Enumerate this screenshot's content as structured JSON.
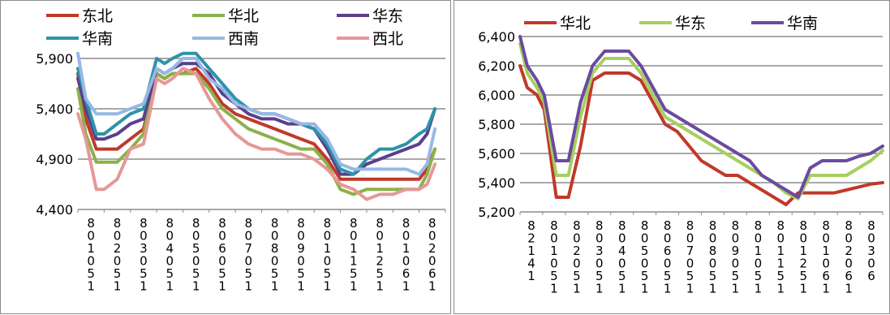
{
  "chart_data": [
    {
      "type": "line",
      "ylim": [
        4400,
        5900
      ],
      "yticks": [
        4400,
        4900,
        5400,
        5900
      ],
      "ytick_labels": [
        "4,400",
        "4,900",
        "5,400",
        "5,900"
      ],
      "xtick_labels": [
        "80105 1",
        "80205 1",
        "80305 1",
        "80405 1",
        "80505 1",
        "80605 1",
        "80705 1",
        "80805 1",
        "80905 1",
        "80105 1",
        "80115 1",
        "80125 1",
        "80106 1",
        "80206 1"
      ],
      "grid": true,
      "legend": "top",
      "series": [
        {
          "name": "东北",
          "color": "#c0392b",
          "x": [
            0,
            0.3,
            0.7,
            1,
            1.5,
            2,
            2.5,
            3,
            3.3,
            3.6,
            4,
            4.5,
            5,
            5.5,
            6,
            6.5,
            7,
            7.5,
            8,
            8.5,
            9,
            9.5,
            10,
            10.5,
            11,
            11.5,
            12,
            12.5,
            13,
            13.3,
            13.6
          ],
          "values": [
            5750,
            5300,
            5000,
            5000,
            5000,
            5100,
            5200,
            5750,
            5700,
            5750,
            5750,
            5800,
            5650,
            5450,
            5350,
            5300,
            5250,
            5200,
            5150,
            5100,
            5050,
            4900,
            4700,
            4700,
            4700,
            4700,
            4700,
            4700,
            4700,
            4800,
            5000
          ]
        },
        {
          "name": "华北",
          "color": "#8db04b",
          "x": [
            0,
            0.3,
            0.7,
            1,
            1.5,
            2,
            2.5,
            3,
            3.3,
            3.6,
            4,
            4.5,
            5,
            5.5,
            6,
            6.5,
            7,
            7.5,
            8,
            8.5,
            9,
            9.5,
            10,
            10.5,
            11,
            11.5,
            12,
            12.5,
            13,
            13.3,
            13.6
          ],
          "values": [
            5600,
            5150,
            4870,
            4870,
            4870,
            5000,
            5150,
            5750,
            5700,
            5750,
            5750,
            5750,
            5600,
            5400,
            5300,
            5200,
            5150,
            5100,
            5050,
            5000,
            5000,
            4850,
            4600,
            4550,
            4600,
            4600,
            4600,
            4600,
            4600,
            4750,
            5000
          ]
        },
        {
          "name": "华东",
          "color": "#5b3f8c",
          "x": [
            0,
            0.3,
            0.7,
            1,
            1.5,
            2,
            2.5,
            3,
            3.3,
            3.6,
            4,
            4.5,
            5,
            5.5,
            6,
            6.5,
            7,
            7.5,
            8,
            8.5,
            9,
            9.5,
            10,
            10.5,
            11,
            11.5,
            12,
            12.5,
            13,
            13.3,
            13.6
          ],
          "values": [
            5700,
            5400,
            5100,
            5100,
            5150,
            5250,
            5300,
            5800,
            5750,
            5800,
            5850,
            5850,
            5750,
            5550,
            5450,
            5350,
            5300,
            5300,
            5250,
            5250,
            5200,
            5000,
            4750,
            4750,
            4850,
            4900,
            4950,
            5000,
            5050,
            5150,
            5400
          ]
        },
        {
          "name": "华南",
          "color": "#2e93a8",
          "x": [
            0,
            0.3,
            0.7,
            1,
            1.5,
            2,
            2.5,
            3,
            3.3,
            3.6,
            4,
            4.5,
            5,
            5.5,
            6,
            6.5,
            7,
            7.5,
            8,
            8.5,
            9,
            9.5,
            10,
            10.5,
            11,
            11.5,
            12,
            12.5,
            13,
            13.3,
            13.6
          ],
          "values": [
            5800,
            5500,
            5150,
            5150,
            5250,
            5350,
            5400,
            5900,
            5850,
            5900,
            5950,
            5950,
            5800,
            5650,
            5500,
            5400,
            5350,
            5350,
            5300,
            5250,
            5200,
            5050,
            4800,
            4750,
            4900,
            5000,
            5000,
            5050,
            5150,
            5200,
            5400
          ]
        },
        {
          "name": "西南",
          "color": "#97b8e6",
          "x": [
            0,
            0.3,
            0.7,
            1,
            1.5,
            2,
            2.5,
            3,
            3.3,
            3.6,
            4,
            4.5,
            5,
            5.5,
            6,
            6.5,
            7,
            7.5,
            8,
            8.5,
            9,
            9.5,
            10,
            10.5,
            11,
            11.5,
            12,
            12.5,
            13,
            13.3,
            13.6
          ],
          "values": [
            5950,
            5500,
            5350,
            5350,
            5350,
            5400,
            5450,
            5800,
            5750,
            5800,
            5900,
            5900,
            5700,
            5600,
            5450,
            5400,
            5350,
            5350,
            5300,
            5250,
            5250,
            5100,
            4850,
            4800,
            4800,
            4800,
            4800,
            4800,
            4750,
            4850,
            5200
          ]
        },
        {
          "name": "西北",
          "color": "#e59896",
          "x": [
            0,
            0.3,
            0.7,
            1,
            1.5,
            2,
            2.5,
            3,
            3.3,
            3.6,
            4,
            4.5,
            5,
            5.5,
            6,
            6.5,
            7,
            7.5,
            8,
            8.5,
            9,
            9.5,
            10,
            10.5,
            11,
            11.5,
            12,
            12.5,
            13,
            13.3,
            13.6
          ],
          "values": [
            5350,
            5100,
            4600,
            4600,
            4700,
            5000,
            5050,
            5700,
            5650,
            5700,
            5800,
            5750,
            5500,
            5300,
            5150,
            5050,
            5000,
            5000,
            4950,
            4950,
            4900,
            4800,
            4650,
            4600,
            4500,
            4550,
            4550,
            4600,
            4600,
            4650,
            4850
          ]
        }
      ]
    },
    {
      "type": "line",
      "ylim": [
        5200,
        6400
      ],
      "yticks": [
        5200,
        5400,
        5600,
        5800,
        6000,
        6200,
        6400
      ],
      "ytick_labels": [
        "5,200",
        "5,400",
        "5,600",
        "5,800",
        "6,000",
        "6,200",
        "6,400"
      ],
      "xtick_labels": [
        "8214 1",
        "80105 1",
        "80205 1",
        "80305 1",
        "80405 1",
        "80505 1",
        "80605 1",
        "80705 1",
        "80805 1",
        "80905 1",
        "80105 1",
        "80115 1",
        "80125 1",
        "80106 1",
        "80206 1",
        "80306"
      ],
      "grid": true,
      "legend": "top",
      "series": [
        {
          "name": "华北",
          "color": "#c0392b",
          "x": [
            0,
            0.3,
            0.7,
            1,
            1.5,
            2,
            2.5,
            3,
            3.5,
            4,
            4.5,
            5,
            5.5,
            6,
            6.5,
            7,
            7.5,
            8,
            8.5,
            9,
            9.5,
            10,
            10.5,
            11,
            11.5,
            12,
            12.5,
            13,
            13.5,
            14,
            14.5,
            15
          ],
          "values": [
            6200,
            6050,
            6000,
            5900,
            5300,
            5300,
            5650,
            6100,
            6150,
            6150,
            6150,
            6100,
            5950,
            5800,
            5750,
            5650,
            5550,
            5500,
            5450,
            5450,
            5400,
            5350,
            5300,
            5250,
            5330,
            5330,
            5330,
            5330,
            5350,
            5370,
            5390,
            5400
          ]
        },
        {
          "name": "华东",
          "color": "#a6cf5e",
          "x": [
            0,
            0.3,
            0.7,
            1,
            1.5,
            2,
            2.5,
            3,
            3.5,
            4,
            4.5,
            5,
            5.5,
            6,
            6.5,
            7,
            7.5,
            8,
            8.5,
            9,
            9.5,
            10,
            10.5,
            11,
            11.5,
            12,
            12.5,
            13,
            13.5,
            14,
            14.5,
            15
          ],
          "values": [
            6350,
            6150,
            6050,
            5950,
            5450,
            5450,
            5850,
            6150,
            6250,
            6250,
            6250,
            6150,
            6000,
            5850,
            5800,
            5750,
            5700,
            5650,
            5600,
            5550,
            5500,
            5450,
            5400,
            5330,
            5290,
            5450,
            5450,
            5450,
            5450,
            5500,
            5550,
            5620
          ]
        },
        {
          "name": "华南",
          "color": "#6b4aa0",
          "x": [
            0,
            0.3,
            0.7,
            1,
            1.5,
            2,
            2.5,
            3,
            3.5,
            4,
            4.5,
            5,
            5.5,
            6,
            6.5,
            7,
            7.5,
            8,
            8.5,
            9,
            9.5,
            10,
            10.5,
            11,
            11.5,
            12,
            12.5,
            13,
            13.5,
            14,
            14.5,
            15
          ],
          "values": [
            6400,
            6200,
            6100,
            6000,
            5550,
            5550,
            5950,
            6200,
            6300,
            6300,
            6300,
            6200,
            6050,
            5900,
            5850,
            5800,
            5750,
            5700,
            5650,
            5600,
            5550,
            5450,
            5400,
            5350,
            5300,
            5500,
            5550,
            5550,
            5550,
            5580,
            5600,
            5650
          ]
        }
      ]
    }
  ]
}
